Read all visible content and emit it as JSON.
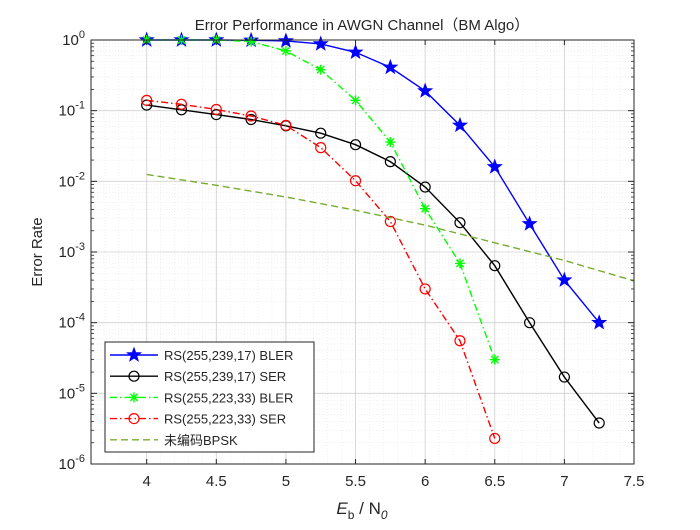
{
  "chart_data": {
    "type": "line",
    "title": "Error Performance in AWGN Channel（BM Algo）",
    "xlabel": {
      "main": "E",
      "sub1": "b",
      "mid": " / N",
      "sub2": "0"
    },
    "ylabel": "Error Rate",
    "xlim": [
      3.6,
      7.5
    ],
    "ylim": [
      1e-06,
      1
    ],
    "yscale": "log",
    "grid": true,
    "minor_grid": true,
    "legend_position": "bottom-left",
    "x_ticks": [
      {
        "value": 4,
        "label": "4"
      },
      {
        "value": 4.5,
        "label": "4.5"
      },
      {
        "value": 5,
        "label": "5"
      },
      {
        "value": 5.5,
        "label": "5.5"
      },
      {
        "value": 6,
        "label": "6"
      },
      {
        "value": 6.5,
        "label": "6.5"
      },
      {
        "value": 7,
        "label": "7"
      },
      {
        "value": 7.5,
        "label": "7.5"
      }
    ],
    "y_ticks": [
      {
        "value": 1,
        "base": "10",
        "exp": "0"
      },
      {
        "value": 0.1,
        "base": "10",
        "exp": "-1"
      },
      {
        "value": 0.01,
        "base": "10",
        "exp": "-2"
      },
      {
        "value": 0.001,
        "base": "10",
        "exp": "-3"
      },
      {
        "value": 0.0001,
        "base": "10",
        "exp": "-4"
      },
      {
        "value": 1e-05,
        "base": "10",
        "exp": "-5"
      },
      {
        "value": 1e-06,
        "base": "10",
        "exp": "-6"
      }
    ],
    "series": [
      {
        "name": "RS(255,239,17) BLER",
        "color": "#0000ff",
        "line": "solid",
        "marker": "star",
        "x": [
          4,
          4.25,
          4.5,
          4.75,
          5,
          5.25,
          5.5,
          5.75,
          6,
          6.25,
          6.5,
          6.75,
          7,
          7.25
        ],
        "y": [
          1,
          1,
          1,
          0.99,
          0.97,
          0.88,
          0.67,
          0.41,
          0.19,
          0.062,
          0.016,
          0.0025,
          0.0004,
          0.0001
        ]
      },
      {
        "name": "RS(255,239,17) SER",
        "color": "#000000",
        "line": "solid",
        "marker": "circle",
        "x": [
          4,
          4.25,
          4.5,
          4.75,
          5,
          5.25,
          5.5,
          5.75,
          6,
          6.25,
          6.5,
          6.75,
          7,
          7.25
        ],
        "y": [
          0.12,
          0.103,
          0.088,
          0.075,
          0.061,
          0.048,
          0.033,
          0.019,
          0.0083,
          0.0026,
          0.00064,
          0.0001,
          1.7e-05,
          3.8e-06
        ]
      },
      {
        "name": "RS(255,223,33) BLER",
        "color": "#00ff00",
        "line": "dashdot",
        "marker": "asterisk",
        "x": [
          4,
          4.25,
          4.5,
          4.75,
          5,
          5.25,
          5.5,
          5.75,
          6,
          6.25,
          6.5
        ],
        "y": [
          1,
          1,
          1,
          0.95,
          0.7,
          0.38,
          0.14,
          0.036,
          0.0041,
          0.00069,
          3e-05
        ]
      },
      {
        "name": "RS(255,223,33) SER",
        "color": "#ff0000",
        "line": "dashdot",
        "marker": "circle",
        "x": [
          4,
          4.25,
          4.5,
          4.75,
          5,
          5.25,
          5.5,
          5.75,
          6,
          6.25,
          6.5
        ],
        "y": [
          0.14,
          0.123,
          0.104,
          0.084,
          0.062,
          0.03,
          0.0102,
          0.0027,
          0.0003,
          5.55e-05,
          2.3e-06
        ]
      },
      {
        "name": "未编码BPSK",
        "color": "#77ac30",
        "line": "dashed",
        "marker": "none",
        "x": [
          4,
          4.5,
          5,
          5.5,
          6,
          6.5,
          7,
          7.5
        ],
        "y": [
          0.0125,
          0.0088,
          0.006,
          0.0039,
          0.0024,
          0.00135,
          0.00076,
          0.00039
        ]
      }
    ]
  }
}
